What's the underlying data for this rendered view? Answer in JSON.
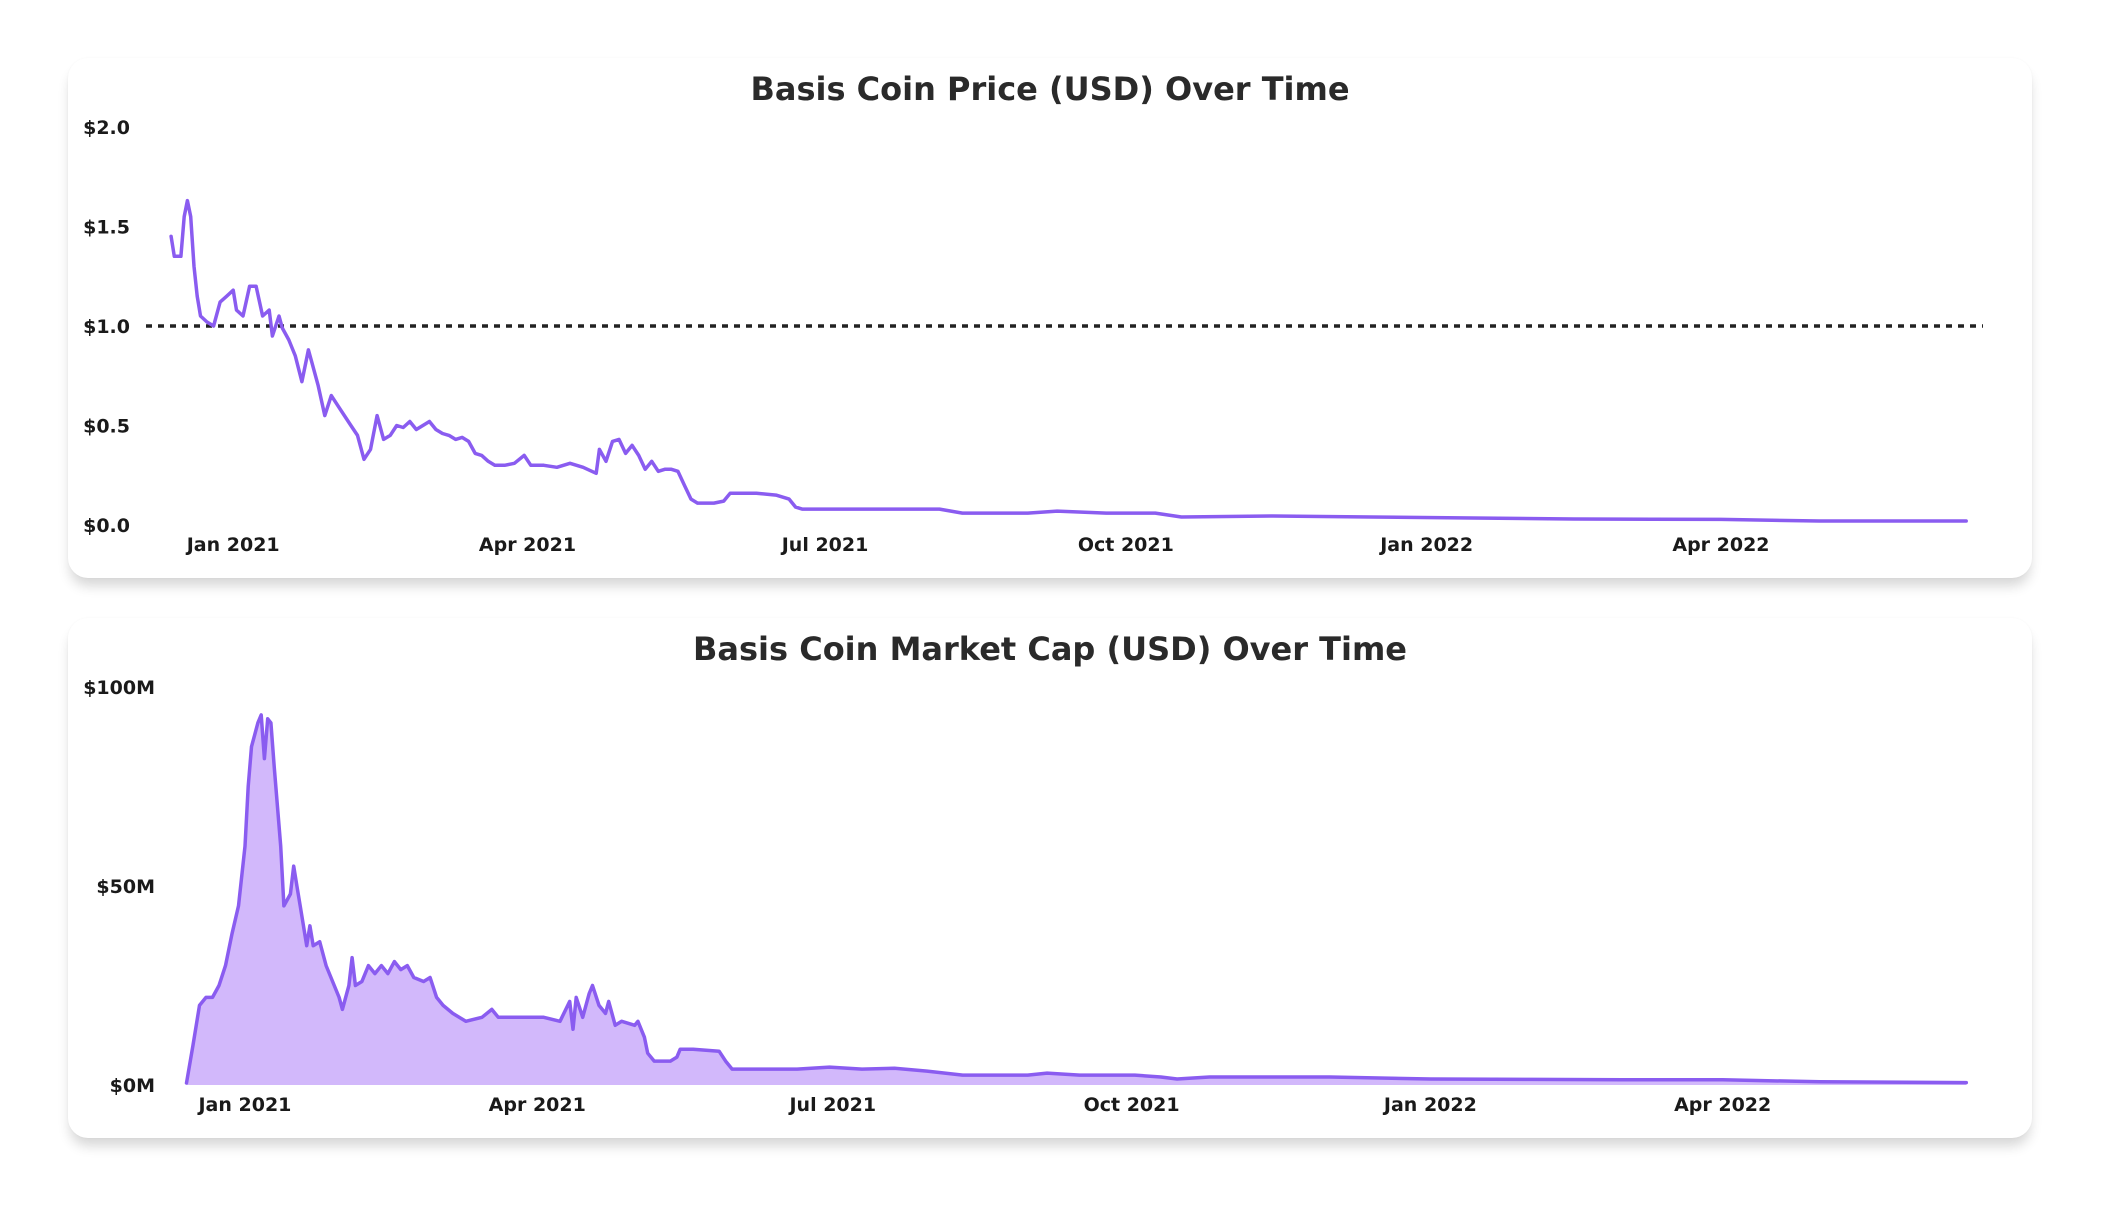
{
  "chart_data": [
    {
      "type": "line",
      "title": "Basis Coin Price (USD) Over Time",
      "xlabel": "",
      "ylabel": "",
      "x_axis": {
        "type": "date",
        "range": [
          "2020-12-09",
          "2022-06-18"
        ],
        "ticks": [
          {
            "date": "2021-01-01",
            "label": "Jan 2021"
          },
          {
            "date": "2021-04-01",
            "label": "Apr 2021"
          },
          {
            "date": "2021-07-01",
            "label": "Jul 2021"
          },
          {
            "date": "2021-10-01",
            "label": "Oct 2021"
          },
          {
            "date": "2022-01-01",
            "label": "Jan 2022"
          },
          {
            "date": "2022-04-01",
            "label": "Apr 2022"
          }
        ]
      },
      "y_axis": {
        "range": [
          0,
          2.0
        ],
        "ticks": [
          {
            "value": 0.0,
            "label": "$0.0"
          },
          {
            "value": 0.5,
            "label": "$0.5"
          },
          {
            "value": 1.0,
            "label": "$1.0"
          },
          {
            "value": 1.5,
            "label": "$1.5"
          },
          {
            "value": 2.0,
            "label": "$2.0"
          }
        ]
      },
      "reference_line": {
        "y": 1.0,
        "style": "dotted",
        "color": "#222222"
      },
      "grid": false,
      "line_color": "#8a5cf0",
      "series": [
        {
          "points": [
            [
              "2020-12-13",
              1.45
            ],
            [
              "2020-12-14",
              1.35
            ],
            [
              "2020-12-16",
              1.35
            ],
            [
              "2020-12-17",
              1.55
            ],
            [
              "2020-12-18",
              1.63
            ],
            [
              "2020-12-19",
              1.55
            ],
            [
              "2020-12-20",
              1.3
            ],
            [
              "2020-12-21",
              1.15
            ],
            [
              "2020-12-22",
              1.05
            ],
            [
              "2020-12-24",
              1.02
            ],
            [
              "2020-12-26",
              1.0
            ],
            [
              "2020-12-28",
              1.12
            ],
            [
              "2020-12-30",
              1.15
            ],
            [
              "2021-01-01",
              1.18
            ],
            [
              "2021-01-02",
              1.08
            ],
            [
              "2021-01-04",
              1.05
            ],
            [
              "2021-01-06",
              1.2
            ],
            [
              "2021-01-08",
              1.2
            ],
            [
              "2021-01-10",
              1.05
            ],
            [
              "2021-01-12",
              1.08
            ],
            [
              "2021-01-13",
              0.95
            ],
            [
              "2021-01-15",
              1.05
            ],
            [
              "2021-01-16",
              0.99
            ],
            [
              "2021-01-18",
              0.93
            ],
            [
              "2021-01-20",
              0.85
            ],
            [
              "2021-01-22",
              0.72
            ],
            [
              "2021-01-24",
              0.88
            ],
            [
              "2021-01-25",
              0.82
            ],
            [
              "2021-01-27",
              0.7
            ],
            [
              "2021-01-29",
              0.55
            ],
            [
              "2021-01-31",
              0.65
            ],
            [
              "2021-02-02",
              0.6
            ],
            [
              "2021-02-04",
              0.55
            ],
            [
              "2021-02-06",
              0.5
            ],
            [
              "2021-02-08",
              0.45
            ],
            [
              "2021-02-10",
              0.33
            ],
            [
              "2021-02-12",
              0.38
            ],
            [
              "2021-02-14",
              0.55
            ],
            [
              "2021-02-16",
              0.43
            ],
            [
              "2021-02-18",
              0.45
            ],
            [
              "2021-02-20",
              0.5
            ],
            [
              "2021-02-22",
              0.49
            ],
            [
              "2021-02-24",
              0.52
            ],
            [
              "2021-02-26",
              0.48
            ],
            [
              "2021-02-28",
              0.5
            ],
            [
              "2021-03-02",
              0.52
            ],
            [
              "2021-03-04",
              0.48
            ],
            [
              "2021-03-06",
              0.46
            ],
            [
              "2021-03-08",
              0.45
            ],
            [
              "2021-03-10",
              0.43
            ],
            [
              "2021-03-12",
              0.44
            ],
            [
              "2021-03-14",
              0.42
            ],
            [
              "2021-03-16",
              0.36
            ],
            [
              "2021-03-18",
              0.35
            ],
            [
              "2021-03-20",
              0.32
            ],
            [
              "2021-03-22",
              0.3
            ],
            [
              "2021-03-25",
              0.3
            ],
            [
              "2021-03-28",
              0.31
            ],
            [
              "2021-03-31",
              0.35
            ],
            [
              "2021-04-02",
              0.3
            ],
            [
              "2021-04-06",
              0.3
            ],
            [
              "2021-04-10",
              0.29
            ],
            [
              "2021-04-14",
              0.31
            ],
            [
              "2021-04-18",
              0.29
            ],
            [
              "2021-04-22",
              0.26
            ],
            [
              "2021-04-23",
              0.38
            ],
            [
              "2021-04-25",
              0.32
            ],
            [
              "2021-04-27",
              0.42
            ],
            [
              "2021-04-29",
              0.43
            ],
            [
              "2021-05-01",
              0.36
            ],
            [
              "2021-05-03",
              0.4
            ],
            [
              "2021-05-05",
              0.35
            ],
            [
              "2021-05-07",
              0.28
            ],
            [
              "2021-05-09",
              0.32
            ],
            [
              "2021-05-11",
              0.27
            ],
            [
              "2021-05-13",
              0.28
            ],
            [
              "2021-05-15",
              0.28
            ],
            [
              "2021-05-17",
              0.27
            ],
            [
              "2021-05-19",
              0.2
            ],
            [
              "2021-05-21",
              0.13
            ],
            [
              "2021-05-23",
              0.11
            ],
            [
              "2021-05-28",
              0.11
            ],
            [
              "2021-05-31",
              0.12
            ],
            [
              "2021-06-02",
              0.16
            ],
            [
              "2021-06-10",
              0.16
            ],
            [
              "2021-06-16",
              0.15
            ],
            [
              "2021-06-20",
              0.13
            ],
            [
              "2021-06-22",
              0.09
            ],
            [
              "2021-06-24",
              0.08
            ],
            [
              "2021-07-10",
              0.08
            ],
            [
              "2021-07-25",
              0.08
            ],
            [
              "2021-08-05",
              0.08
            ],
            [
              "2021-08-12",
              0.06
            ],
            [
              "2021-08-20",
              0.06
            ],
            [
              "2021-09-01",
              0.06
            ],
            [
              "2021-09-10",
              0.07
            ],
            [
              "2021-09-25",
              0.06
            ],
            [
              "2021-10-10",
              0.06
            ],
            [
              "2021-10-18",
              0.04
            ],
            [
              "2021-11-15",
              0.045
            ],
            [
              "2021-12-15",
              0.04
            ],
            [
              "2022-01-15",
              0.035
            ],
            [
              "2022-02-15",
              0.03
            ],
            [
              "2022-04-01",
              0.028
            ],
            [
              "2022-05-01",
              0.02
            ],
            [
              "2022-06-15",
              0.02
            ]
          ]
        }
      ]
    },
    {
      "type": "area",
      "title": "Basis Coin Market Cap (USD) Over Time",
      "xlabel": "",
      "ylabel": "",
      "x_axis": {
        "type": "date",
        "range": [
          "2020-12-12",
          "2022-06-18"
        ],
        "ticks": [
          {
            "date": "2021-01-01",
            "label": "Jan 2021"
          },
          {
            "date": "2021-04-01",
            "label": "Apr 2021"
          },
          {
            "date": "2021-07-01",
            "label": "Jul 2021"
          },
          {
            "date": "2021-10-01",
            "label": "Oct 2021"
          },
          {
            "date": "2022-01-01",
            "label": "Jan 2022"
          },
          {
            "date": "2022-04-01",
            "label": "Apr 2022"
          }
        ]
      },
      "y_axis": {
        "unit": "USD millions",
        "range": [
          0,
          100
        ],
        "ticks": [
          {
            "value": 0,
            "label": "$0M"
          },
          {
            "value": 50,
            "label": "$50M"
          },
          {
            "value": 100,
            "label": "$100M"
          }
        ]
      },
      "grid": false,
      "line_color": "#8a5cf0",
      "fill_color": "#d2b8fb",
      "series": [
        {
          "points": [
            [
              "2020-12-14",
              0.5
            ],
            [
              "2020-12-16",
              10
            ],
            [
              "2020-12-18",
              20
            ],
            [
              "2020-12-20",
              22
            ],
            [
              "2020-12-22",
              22
            ],
            [
              "2020-12-24",
              25
            ],
            [
              "2020-12-26",
              30
            ],
            [
              "2020-12-28",
              38
            ],
            [
              "2020-12-30",
              45
            ],
            [
              "2021-01-01",
              60
            ],
            [
              "2021-01-02",
              75
            ],
            [
              "2021-01-03",
              85
            ],
            [
              "2021-01-04",
              88
            ],
            [
              "2021-01-05",
              91
            ],
            [
              "2021-01-06",
              93
            ],
            [
              "2021-01-07",
              82
            ],
            [
              "2021-01-08",
              92
            ],
            [
              "2021-01-09",
              91
            ],
            [
              "2021-01-10",
              80
            ],
            [
              "2021-01-12",
              60
            ],
            [
              "2021-01-13",
              45
            ],
            [
              "2021-01-15",
              48
            ],
            [
              "2021-01-16",
              55
            ],
            [
              "2021-01-17",
              50
            ],
            [
              "2021-01-18",
              45
            ],
            [
              "2021-01-20",
              35
            ],
            [
              "2021-01-21",
              40
            ],
            [
              "2021-01-22",
              35
            ],
            [
              "2021-01-24",
              36
            ],
            [
              "2021-01-26",
              30
            ],
            [
              "2021-01-28",
              26
            ],
            [
              "2021-01-30",
              22
            ],
            [
              "2021-01-31",
              19
            ],
            [
              "2021-02-02",
              25
            ],
            [
              "2021-02-03",
              32
            ],
            [
              "2021-02-04",
              25
            ],
            [
              "2021-02-06",
              26
            ],
            [
              "2021-02-08",
              30
            ],
            [
              "2021-02-10",
              28
            ],
            [
              "2021-02-12",
              30
            ],
            [
              "2021-02-14",
              28
            ],
            [
              "2021-02-16",
              31
            ],
            [
              "2021-02-18",
              29
            ],
            [
              "2021-02-20",
              30
            ],
            [
              "2021-02-22",
              27
            ],
            [
              "2021-02-25",
              26
            ],
            [
              "2021-02-27",
              27
            ],
            [
              "2021-03-01",
              22
            ],
            [
              "2021-03-03",
              20
            ],
            [
              "2021-03-06",
              18
            ],
            [
              "2021-03-10",
              16
            ],
            [
              "2021-03-15",
              17
            ],
            [
              "2021-03-18",
              19
            ],
            [
              "2021-03-20",
              17
            ],
            [
              "2021-03-25",
              17
            ],
            [
              "2021-03-30",
              17
            ],
            [
              "2021-04-03",
              17
            ],
            [
              "2021-04-08",
              16
            ],
            [
              "2021-04-11",
              21
            ],
            [
              "2021-04-12",
              14
            ],
            [
              "2021-04-13",
              22
            ],
            [
              "2021-04-15",
              17
            ],
            [
              "2021-04-17",
              23
            ],
            [
              "2021-04-18",
              25
            ],
            [
              "2021-04-20",
              20
            ],
            [
              "2021-04-22",
              18
            ],
            [
              "2021-04-23",
              21
            ],
            [
              "2021-04-25",
              15
            ],
            [
              "2021-04-27",
              16
            ],
            [
              "2021-05-01",
              15
            ],
            [
              "2021-05-02",
              16
            ],
            [
              "2021-05-04",
              12
            ],
            [
              "2021-05-05",
              8
            ],
            [
              "2021-05-07",
              6
            ],
            [
              "2021-05-12",
              6
            ],
            [
              "2021-05-14",
              7
            ],
            [
              "2021-05-15",
              9
            ],
            [
              "2021-05-19",
              9
            ],
            [
              "2021-05-27",
              8.5
            ],
            [
              "2021-05-29",
              6
            ],
            [
              "2021-05-31",
              4
            ],
            [
              "2021-06-10",
              4
            ],
            [
              "2021-06-20",
              4
            ],
            [
              "2021-06-30",
              4.5
            ],
            [
              "2021-07-10",
              4
            ],
            [
              "2021-07-20",
              4.2
            ],
            [
              "2021-07-30",
              3.5
            ],
            [
              "2021-08-10",
              2.5
            ],
            [
              "2021-08-20",
              2.5
            ],
            [
              "2021-08-30",
              2.5
            ],
            [
              "2021-09-05",
              3
            ],
            [
              "2021-09-15",
              2.5
            ],
            [
              "2021-09-25",
              2.5
            ],
            [
              "2021-10-02",
              2.5
            ],
            [
              "2021-10-10",
              2
            ],
            [
              "2021-10-15",
              1.5
            ],
            [
              "2021-10-25",
              2
            ],
            [
              "2021-11-15",
              2
            ],
            [
              "2021-12-01",
              2
            ],
            [
              "2022-01-01",
              1.5
            ],
            [
              "2022-02-01",
              1.4
            ],
            [
              "2022-03-01",
              1.3
            ],
            [
              "2022-04-01",
              1.3
            ],
            [
              "2022-05-01",
              0.8
            ],
            [
              "2022-06-15",
              0.6
            ]
          ]
        }
      ]
    }
  ]
}
